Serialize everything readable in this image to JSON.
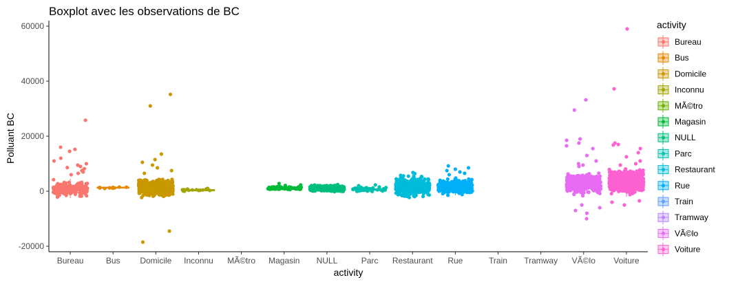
{
  "chart_data": {
    "type": "boxplot",
    "title": "Boxplot avec les observations de BC",
    "xlabel": "activity",
    "ylabel": "Polluant BC",
    "ylim": [
      -22000,
      62000
    ],
    "yticks": [
      -20000,
      0,
      20000,
      40000,
      60000
    ],
    "grid": false,
    "legend_position": "right",
    "legend_title": "activity",
    "categories": [
      "Bureau",
      "Bus",
      "Domicile",
      "Inconnu",
      "MÃ©tro",
      "Magasin",
      "NULL",
      "Parc",
      "Restaurant",
      "Rue",
      "Train",
      "Tramway",
      "VÃ©lo",
      "Voiture"
    ],
    "colors": [
      "#F8766D",
      "#E58700",
      "#C99800",
      "#A3A500",
      "#6BB100",
      "#00BA38",
      "#00BF7D",
      "#00C0AF",
      "#00BCD8",
      "#00B0F6",
      "#619CFF",
      "#B983FF",
      "#E76BF3",
      "#FD61D1"
    ],
    "series": [
      {
        "category": "Bureau",
        "q1": -500,
        "median": 800,
        "q3": 1800,
        "whisker_low": -2500,
        "whisker_high": 4500,
        "spread_low": -3000,
        "spread_high": 4500,
        "n_points": 170,
        "points": [
          25800,
          16000,
          15200,
          14500,
          12000,
          11000,
          10000,
          9500,
          9000,
          8600,
          8200,
          7500,
          7000,
          6500,
          6000
        ]
      },
      {
        "category": "Bus",
        "q1": 1100,
        "median": 1300,
        "q3": 1500,
        "whisker_low": 900,
        "whisker_high": 1600,
        "spread_low": 1000,
        "spread_high": 1600,
        "n_points": 6,
        "points": [
          1000,
          1400,
          1500,
          1200
        ]
      },
      {
        "category": "Domicile",
        "q1": 0,
        "median": 500,
        "q3": 1200,
        "whisker_low": -1500,
        "whisker_high": 3000,
        "spread_low": -2500,
        "spread_high": 5000,
        "n_points": 700,
        "points": [
          35200,
          31000,
          13500,
          11500,
          10500,
          9500,
          8500,
          7500,
          6500,
          -14500,
          -18500
        ]
      },
      {
        "category": "Inconnu",
        "q1": 100,
        "median": 300,
        "q3": 600,
        "whisker_low": 0,
        "whisker_high": 900,
        "spread_low": -200,
        "spread_high": 900,
        "n_points": 12,
        "points": [
          1000,
          800,
          0
        ]
      },
      {
        "category": "MÃ©tro",
        "q1": null,
        "median": null,
        "q3": null,
        "n_points": 0,
        "points": []
      },
      {
        "category": "Magasin",
        "q1": 700,
        "median": 1000,
        "q3": 1300,
        "whisker_low": 200,
        "whisker_high": 2000,
        "spread_low": 300,
        "spread_high": 2000,
        "n_points": 80,
        "points": [
          2800,
          2300,
          2100
        ]
      },
      {
        "category": "NULL",
        "q1": 0,
        "median": 800,
        "q3": 2200,
        "whisker_low": -300,
        "whisker_high": 2500,
        "spread_low": -300,
        "spread_high": 2500,
        "n_points": 500,
        "points": []
      },
      {
        "category": "Parc",
        "q1": 300,
        "median": 600,
        "q3": 900,
        "whisker_low": -200,
        "whisker_high": 1500,
        "spread_low": -300,
        "spread_high": 1800,
        "n_points": 45,
        "points": [
          2300,
          2000
        ]
      },
      {
        "category": "Restaurant",
        "q1": 1800,
        "median": 2500,
        "q3": 4000,
        "whisker_low": -1000,
        "whisker_high": 6500,
        "spread_low": -3000,
        "spread_high": 6500,
        "n_points": 320,
        "points": [
          6800,
          6400
        ]
      },
      {
        "category": "Rue",
        "q1": -200,
        "median": 700,
        "q3": 1600,
        "whisker_low": -1500,
        "whisker_high": 4000,
        "spread_low": -1800,
        "spread_high": 5000,
        "n_points": 320,
        "points": [
          9200,
          8500,
          8000,
          7500,
          7000,
          6500,
          6000
        ]
      },
      {
        "category": "Train",
        "q1": null,
        "median": null,
        "q3": null,
        "n_points": 0,
        "points": []
      },
      {
        "category": "Tramway",
        "q1": null,
        "median": null,
        "q3": null,
        "n_points": 0,
        "points": []
      },
      {
        "category": "VÃ©lo",
        "q1": 1500,
        "median": 2200,
        "q3": 3300,
        "whisker_low": -1500,
        "whisker_high": 6500,
        "spread_low": -2000,
        "spread_high": 7500,
        "n_points": 400,
        "points": [
          33200,
          29500,
          19000,
          18500,
          17500,
          16500,
          15500,
          13000,
          11000,
          10000,
          9500,
          9000,
          -5000,
          -6000,
          -7000,
          -8000,
          -10000
        ]
      },
      {
        "category": "Voiture",
        "q1": 300,
        "median": 1200,
        "q3": 2500,
        "whisker_low": -2000,
        "whisker_high": 7000,
        "spread_low": -1500,
        "spread_high": 8500,
        "n_points": 900,
        "points": [
          59000,
          37200,
          17500,
          17000,
          16800,
          15500,
          14000,
          12500,
          11000,
          10000,
          9500,
          -3500,
          -4000,
          -5000
        ]
      }
    ]
  }
}
